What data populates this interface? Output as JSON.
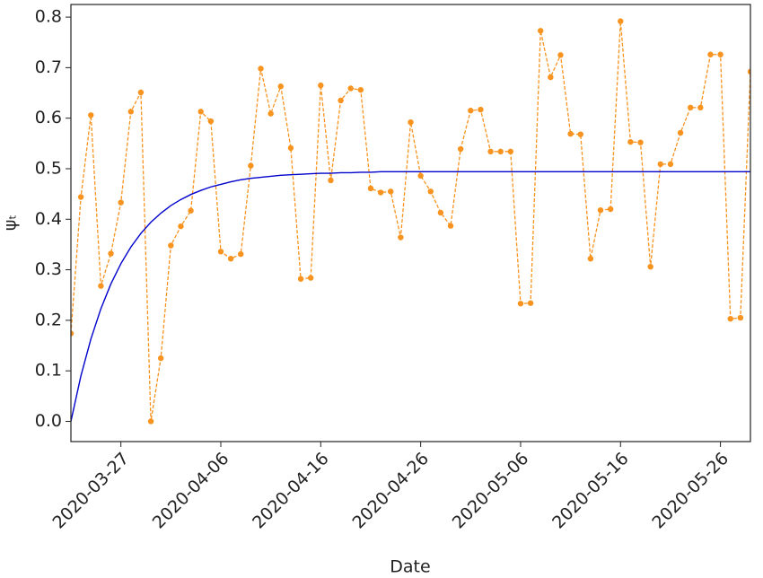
{
  "chart_data": {
    "type": "line",
    "xlabel": "Date",
    "ylabel": "ψₜ",
    "x": [
      "2020-03-22",
      "2020-03-23",
      "2020-03-24",
      "2020-03-25",
      "2020-03-26",
      "2020-03-27",
      "2020-03-28",
      "2020-03-29",
      "2020-03-30",
      "2020-03-31",
      "2020-04-01",
      "2020-04-02",
      "2020-04-03",
      "2020-04-04",
      "2020-04-05",
      "2020-04-06",
      "2020-04-07",
      "2020-04-08",
      "2020-04-09",
      "2020-04-10",
      "2020-04-11",
      "2020-04-12",
      "2020-04-13",
      "2020-04-14",
      "2020-04-15",
      "2020-04-16",
      "2020-04-17",
      "2020-04-18",
      "2020-04-19",
      "2020-04-20",
      "2020-04-21",
      "2020-04-22",
      "2020-04-23",
      "2020-04-24",
      "2020-04-25",
      "2020-04-26",
      "2020-04-27",
      "2020-04-28",
      "2020-04-29",
      "2020-04-30",
      "2020-05-01",
      "2020-05-02",
      "2020-05-03",
      "2020-05-04",
      "2020-05-05",
      "2020-05-06",
      "2020-05-07",
      "2020-05-08",
      "2020-05-09",
      "2020-05-10",
      "2020-05-11",
      "2020-05-12",
      "2020-05-13",
      "2020-05-14",
      "2020-05-15",
      "2020-05-16",
      "2020-05-17",
      "2020-05-18",
      "2020-05-19",
      "2020-05-20",
      "2020-05-21",
      "2020-05-22",
      "2020-05-23",
      "2020-05-24",
      "2020-05-25",
      "2020-05-26",
      "2020-05-27",
      "2020-05-28",
      "2020-05-29"
    ],
    "series": [
      {
        "color": "#f7931e",
        "linestyle": "dashed",
        "marker": true,
        "values": [
          0.174,
          0.444,
          0.606,
          0.268,
          0.332,
          0.433,
          0.613,
          0.651,
          0.0,
          0.125,
          0.348,
          0.386,
          0.417,
          0.613,
          0.594,
          0.336,
          0.322,
          0.331,
          0.506,
          0.698,
          0.609,
          0.663,
          0.541,
          0.282,
          0.284,
          0.665,
          0.477,
          0.635,
          0.659,
          0.656,
          0.461,
          0.453,
          0.455,
          0.364,
          0.592,
          0.486,
          0.455,
          0.413,
          0.387,
          0.539,
          0.615,
          0.617,
          0.534,
          0.534,
          0.534,
          0.233,
          0.234,
          0.773,
          0.681,
          0.725,
          0.569,
          0.568,
          0.322,
          0.418,
          0.42,
          0.792,
          0.553,
          0.552,
          0.306,
          0.509,
          0.509,
          0.571,
          0.621,
          0.621,
          0.726,
          0.726,
          0.203,
          0.205,
          0.692
        ]
      },
      {
        "color": "#0000cc",
        "linestyle": "solid",
        "marker": false,
        "values": [
          0,
          0.09,
          0.163,
          0.223,
          0.272,
          0.312,
          0.345,
          0.372,
          0.394,
          0.412,
          0.427,
          0.439,
          0.449,
          0.457,
          0.464,
          0.469,
          0.474,
          0.478,
          0.481,
          0.483,
          0.485,
          0.487,
          0.488,
          0.489,
          0.49,
          0.491,
          0.491,
          0.492,
          0.492,
          0.493,
          0.493,
          0.494,
          0.494,
          0.494,
          0.494,
          0.494,
          0.494,
          0.494,
          0.494,
          0.494,
          0.494,
          0.494,
          0.494,
          0.494,
          0.494,
          0.494,
          0.494,
          0.494,
          0.494,
          0.494,
          0.494,
          0.494,
          0.494,
          0.494,
          0.494,
          0.494,
          0.494,
          0.494,
          0.494,
          0.494,
          0.494,
          0.494,
          0.494,
          0.494,
          0.494,
          0.494,
          0.494,
          0.494,
          0.494
        ]
      }
    ],
    "xlim": [
      "2020-03-22",
      "2020-05-29"
    ],
    "xticks": [
      "2020-03-27",
      "2020-04-06",
      "2020-04-16",
      "2020-04-26",
      "2020-05-06",
      "2020-05-16",
      "2020-05-26"
    ],
    "ylim": [
      -0.04,
      0.825
    ],
    "yticks": [
      {
        "value": 0,
        "label": "0.0"
      },
      0.1,
      0.2,
      0.3,
      0.4,
      0.5,
      0.6,
      0.7,
      0.8
    ],
    "grid": false
  }
}
